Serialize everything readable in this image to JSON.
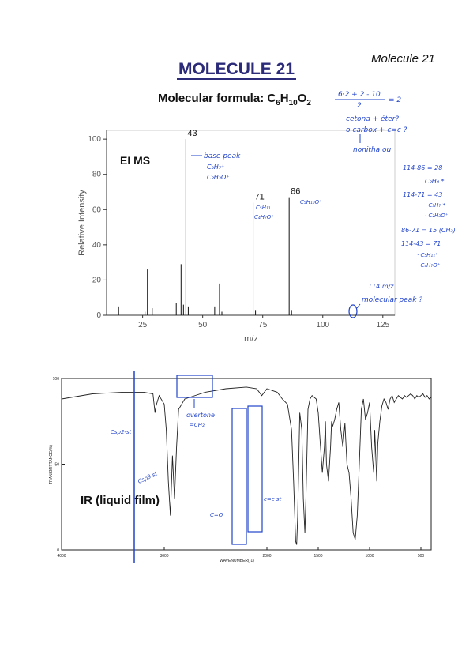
{
  "page": {
    "corner_label": "Molecule 21",
    "title": "MOLECULE 21",
    "formula_prefix": "Molecular formula: C",
    "formula_c": "6",
    "formula_h_text": "H",
    "formula_h": "10",
    "formula_o_text": "O",
    "formula_o": "2"
  },
  "annotations": {
    "dbe_calc": [
      "6·2 + 2 - 10",
      "2",
      "= 2"
    ],
    "carbonyl_note": [
      "cetona + éter?",
      "o carbox + c=c ?",
      "nonitha ou"
    ],
    "base_peak_note": [
      "base peak",
      "C₃H₇⁺",
      "C₂H₃O⁺"
    ],
    "peak71_note": [
      "C₅H₁₁",
      "C₄H₇O⁺"
    ],
    "peak86_note": "C₅H₁₀O⁺",
    "fragment_math": [
      "114-86 = 28",
      "C₂H₄ *",
      "114-71 = 43",
      "· C₃H₇ *",
      "· C₂H₃O⁺",
      "86-71 = 15 (CH₃)",
      "114-43 = 71",
      "· C₅H₁₁⁺",
      "· C₄H₇O⁺"
    ],
    "molecular_peak_note": [
      "114 m/z",
      "molecular peak ?"
    ],
    "ir_sp2": "Csp2-st",
    "ir_sp3": "Csp3 st",
    "ir_overtone": [
      "overtone",
      "=CH₂"
    ],
    "ir_co": "C=O",
    "ir_cc": "c=c st"
  },
  "chart_data": [
    {
      "type": "bar",
      "label": "EI MS",
      "xlabel": "m/z",
      "ylabel": "Relative Intensity",
      "xlim": [
        10,
        130
      ],
      "ylim": [
        0,
        105
      ],
      "xticks": [
        25,
        50,
        75,
        100,
        125
      ],
      "yticks": [
        0,
        20,
        40,
        60,
        80,
        100
      ],
      "peaks": [
        {
          "x": 15,
          "y": 5
        },
        {
          "x": 26,
          "y": 2
        },
        {
          "x": 27,
          "y": 26
        },
        {
          "x": 29,
          "y": 4
        },
        {
          "x": 39,
          "y": 7
        },
        {
          "x": 41,
          "y": 29
        },
        {
          "x": 42,
          "y": 6
        },
        {
          "x": 43,
          "y": 100
        },
        {
          "x": 44,
          "y": 5
        },
        {
          "x": 55,
          "y": 5
        },
        {
          "x": 57,
          "y": 18
        },
        {
          "x": 58,
          "y": 2
        },
        {
          "x": 71,
          "y": 64
        },
        {
          "x": 72,
          "y": 3
        },
        {
          "x": 86,
          "y": 67
        },
        {
          "x": 87,
          "y": 3
        },
        {
          "x": 114,
          "y": 1
        }
      ],
      "peak_labels": [
        {
          "x": 43,
          "label": "43"
        },
        {
          "x": 71,
          "label": "71"
        },
        {
          "x": 86,
          "label": "86"
        }
      ]
    },
    {
      "type": "line",
      "label": "IR (liquid film)",
      "xlabel": "WAVENUMBER(-1)",
      "ylabel": "TRANSMITTANCE(%)",
      "xlim": [
        4000,
        400
      ],
      "ylim": [
        0,
        100
      ],
      "xticks": [
        4000,
        3000,
        2000,
        1500,
        1000,
        500
      ],
      "yticks": [
        0,
        50,
        100
      ],
      "x": [
        4000,
        3700,
        3400,
        3200,
        3110,
        3090,
        3080,
        3050,
        3000,
        2980,
        2960,
        2940,
        2920,
        2900,
        2880,
        2860,
        2800,
        2600,
        2400,
        2200,
        2100,
        2050,
        2000,
        1950,
        1900,
        1850,
        1800,
        1760,
        1740,
        1720,
        1710,
        1700,
        1680,
        1660,
        1645,
        1630,
        1620,
        1600,
        1580,
        1560,
        1520,
        1500,
        1480,
        1460,
        1440,
        1430,
        1420,
        1400,
        1380,
        1370,
        1360,
        1340,
        1320,
        1300,
        1280,
        1260,
        1240,
        1220,
        1200,
        1180,
        1160,
        1140,
        1120,
        1100,
        1080,
        1060,
        1040,
        1020,
        1000,
        980,
        960,
        950,
        940,
        930,
        920,
        900,
        880,
        860,
        840,
        820,
        800,
        780,
        760,
        740,
        720,
        700,
        680,
        660,
        640,
        620,
        600,
        580,
        560,
        540,
        520,
        500,
        480,
        460,
        440,
        420,
        400
      ],
      "y": [
        88,
        91,
        92,
        92,
        91,
        80,
        84,
        90,
        85,
        70,
        40,
        20,
        55,
        30,
        60,
        82,
        88,
        92,
        94,
        95,
        94,
        90,
        94,
        93,
        92,
        88,
        85,
        70,
        40,
        5,
        3,
        20,
        80,
        70,
        30,
        10,
        30,
        82,
        88,
        90,
        88,
        80,
        62,
        45,
        60,
        75,
        50,
        40,
        60,
        75,
        72,
        76,
        82,
        86,
        70,
        60,
        74,
        50,
        45,
        30,
        10,
        6,
        20,
        50,
        82,
        88,
        76,
        80,
        86,
        60,
        45,
        70,
        55,
        40,
        62,
        75,
        84,
        88,
        86,
        82,
        88,
        90,
        86,
        88,
        90,
        89,
        88,
        90,
        89,
        90,
        91,
        90,
        88,
        90,
        89,
        90,
        91,
        89,
        90,
        88,
        89
      ]
    }
  ]
}
